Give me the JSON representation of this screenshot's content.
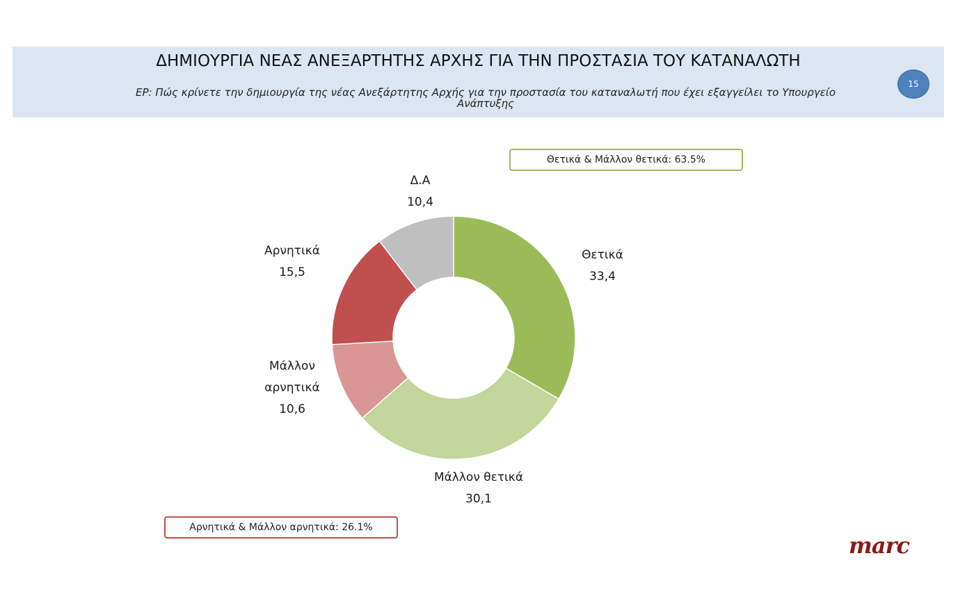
{
  "header": {
    "title": "ΔΗΜΙΟΥΡΓΙΑ ΝΕΑΣ ΑΝΕΞΑΡΤΗΤΗΣ ΑΡΧΗΣ ΓΙΑ ΤΗΝ ΠΡΟΣΤΑΣΙΑ ΤΟΥ ΚΑΤΑΝΑΛΩΤΗ",
    "question": "ΕΡ: Πώς κρίνετε την δημιουργία της νέας Ανεξάρτητης Αρχής για την προστασία του καταναλωτή που έχει εξαγγείλει το Υπουργείο Ανάπτυξης",
    "page_number": "15"
  },
  "summaries": {
    "positive": "Θετικά & Μάλλον θετικά: 63.5%",
    "negative": "Αρνητικά & Μάλλον αρνητικά: 26.1%"
  },
  "colors": {
    "positive_border": "#9bbb59",
    "negative_border": "#c0504d",
    "header_bg": "#dce6f2",
    "badge": "#4f81bd",
    "logo": "#8b1a1a"
  },
  "logo_text": "marc",
  "chart_data": {
    "type": "pie",
    "donut": true,
    "categories": [
      "Θετικά",
      "Μάλλον θετικά",
      "Μάλλον αρνητικά",
      "Αρνητικά",
      "Δ.Α"
    ],
    "values": [
      33.4,
      30.1,
      10.6,
      15.5,
      10.4
    ],
    "value_labels": [
      "33,4",
      "30,1",
      "10,6",
      "15,5",
      "10,4"
    ],
    "label_lines": [
      [
        "Θετικά"
      ],
      [
        "Μάλλον θετικά"
      ],
      [
        "Μάλλον",
        "αρνητικά"
      ],
      [
        "Αρνητικά"
      ],
      [
        "Δ.Α"
      ]
    ],
    "colors": [
      "#9bbb59",
      "#c3d69b",
      "#d99694",
      "#c0504d",
      "#bfbfbf"
    ]
  }
}
